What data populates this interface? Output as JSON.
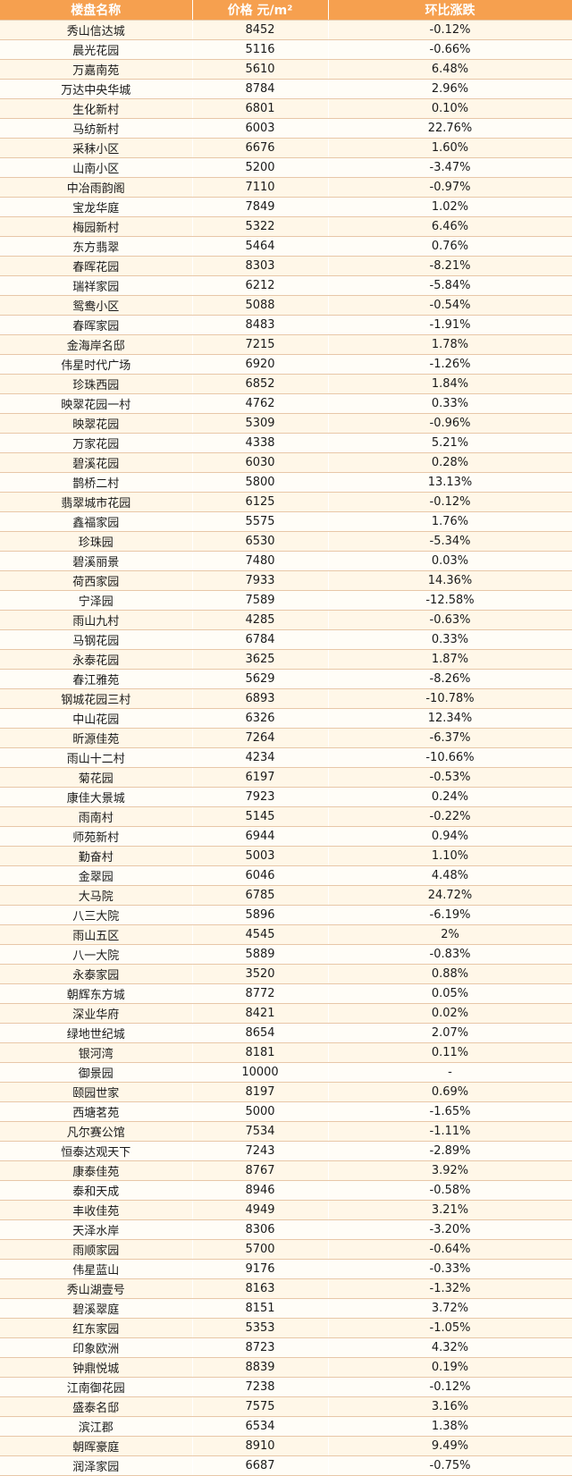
{
  "table": {
    "headers": [
      "楼盘名称",
      "价格 元/m²",
      "环比涨跌"
    ],
    "rows": [
      [
        "秀山信达城",
        "8452",
        "-0.12%"
      ],
      [
        "晨光花园",
        "5116",
        "-0.66%"
      ],
      [
        "万嘉南苑",
        "5610",
        "6.48%"
      ],
      [
        "万达中央华城",
        "8784",
        "2.96%"
      ],
      [
        "生化新村",
        "6801",
        "0.10%"
      ],
      [
        "马纺新村",
        "6003",
        "22.76%"
      ],
      [
        "采秣小区",
        "6676",
        "1.60%"
      ],
      [
        "山南小区",
        "5200",
        "-3.47%"
      ],
      [
        "中冶雨韵阁",
        "7110",
        "-0.97%"
      ],
      [
        "宝龙华庭",
        "7849",
        "1.02%"
      ],
      [
        "梅园新村",
        "5322",
        "6.46%"
      ],
      [
        "东方翡翠",
        "5464",
        "0.76%"
      ],
      [
        "春晖花园",
        "8303",
        "-8.21%"
      ],
      [
        "瑞祥家园",
        "6212",
        "-5.84%"
      ],
      [
        "鸳鸯小区",
        "5088",
        "-0.54%"
      ],
      [
        "春晖家园",
        "8483",
        "-1.91%"
      ],
      [
        "金海岸名邸",
        "7215",
        "1.78%"
      ],
      [
        "伟星时代广场",
        "6920",
        "-1.26%"
      ],
      [
        "珍珠西园",
        "6852",
        "1.84%"
      ],
      [
        "映翠花园一村",
        "4762",
        "0.33%"
      ],
      [
        "映翠花园",
        "5309",
        "-0.96%"
      ],
      [
        "万家花园",
        "4338",
        "5.21%"
      ],
      [
        "碧溪花园",
        "6030",
        "0.28%"
      ],
      [
        "鹊桥二村",
        "5800",
        "13.13%"
      ],
      [
        "翡翠城市花园",
        "6125",
        "-0.12%"
      ],
      [
        "鑫福家园",
        "5575",
        "1.76%"
      ],
      [
        "珍珠园",
        "6530",
        "-5.34%"
      ],
      [
        "碧溪丽景",
        "7480",
        "0.03%"
      ],
      [
        "荷西家园",
        "7933",
        "14.36%"
      ],
      [
        "宁泽园",
        "7589",
        "-12.58%"
      ],
      [
        "雨山九村",
        "4285",
        "-0.63%"
      ],
      [
        "马钢花园",
        "6784",
        "0.33%"
      ],
      [
        "永泰花园",
        "3625",
        "1.87%"
      ],
      [
        "春江雅苑",
        "5629",
        "-8.26%"
      ],
      [
        "钢城花园三村",
        "6893",
        "-10.78%"
      ],
      [
        "中山花园",
        "6326",
        "12.34%"
      ],
      [
        "昕源佳苑",
        "7264",
        "-6.37%"
      ],
      [
        "雨山十二村",
        "4234",
        "-10.66%"
      ],
      [
        "菊花园",
        "6197",
        "-0.53%"
      ],
      [
        "康佳大景城",
        "7923",
        "0.24%"
      ],
      [
        "雨南村",
        "5145",
        "-0.22%"
      ],
      [
        "师苑新村",
        "6944",
        "0.94%"
      ],
      [
        "勤奋村",
        "5003",
        "1.10%"
      ],
      [
        "金翠园",
        "6046",
        "4.48%"
      ],
      [
        "大马院",
        "6785",
        "24.72%"
      ],
      [
        "八三大院",
        "5896",
        "-6.19%"
      ],
      [
        "雨山五区",
        "4545",
        "2%"
      ],
      [
        "八一大院",
        "5889",
        "-0.83%"
      ],
      [
        "永泰家园",
        "3520",
        "0.88%"
      ],
      [
        "朝辉东方城",
        "8772",
        "0.05%"
      ],
      [
        "深业华府",
        "8421",
        "0.02%"
      ],
      [
        "绿地世纪城",
        "8654",
        "2.07%"
      ],
      [
        "银河湾",
        "8181",
        "0.11%"
      ],
      [
        "御景园",
        "10000",
        "-"
      ],
      [
        "颐园世家",
        "8197",
        "0.69%"
      ],
      [
        "西塘茗苑",
        "5000",
        "-1.65%"
      ],
      [
        "凡尔赛公馆",
        "7534",
        "-1.11%"
      ],
      [
        "恒泰达观天下",
        "7243",
        "-2.89%"
      ],
      [
        "康泰佳苑",
        "8767",
        "3.92%"
      ],
      [
        "泰和天成",
        "8946",
        "-0.58%"
      ],
      [
        "丰收佳苑",
        "4949",
        "3.21%"
      ],
      [
        "天泽水岸",
        "8306",
        "-3.20%"
      ],
      [
        "雨顺家园",
        "5700",
        "-0.64%"
      ],
      [
        "伟星蓝山",
        "9176",
        "-0.33%"
      ],
      [
        "秀山湖壹号",
        "8163",
        "-1.32%"
      ],
      [
        "碧溪翠庭",
        "8151",
        "3.72%"
      ],
      [
        "红东家园",
        "5353",
        "-1.05%"
      ],
      [
        "印象欧洲",
        "8723",
        "4.32%"
      ],
      [
        "钟鼎悦城",
        "8839",
        "0.19%"
      ],
      [
        "江南御花园",
        "7238",
        "-0.12%"
      ],
      [
        "盛泰名邸",
        "7575",
        "3.16%"
      ],
      [
        "滨江郡",
        "6534",
        "1.38%"
      ],
      [
        "朝晖豪庭",
        "8910",
        "9.49%"
      ],
      [
        "润泽家园",
        "6687",
        "-0.75%"
      ]
    ]
  },
  "colors": {
    "header_bg": "#f6a04f",
    "row_odd": "#fff7e8",
    "row_even": "#fffdf7",
    "divider": "#e8c7a8"
  }
}
